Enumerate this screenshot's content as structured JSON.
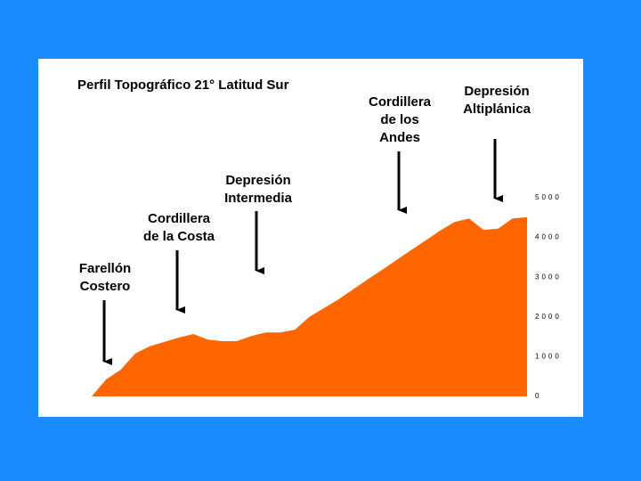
{
  "chart_data": {
    "type": "area",
    "title": "Perfil Topográfico 21° Latitud Sur",
    "values": [
      0,
      430,
      670,
      1080,
      1260,
      1370,
      1480,
      1570,
      1430,
      1390,
      1390,
      1520,
      1610,
      1610,
      1680,
      2000,
      2220,
      2440,
      2690,
      2940,
      3180,
      3430,
      3680,
      3920,
      4170,
      4390,
      4480,
      4190,
      4220,
      4480,
      4510
    ],
    "color": "#ff6600",
    "ylim": [
      0,
      5000
    ],
    "yticks": [
      0,
      1000,
      2000,
      3000,
      4000,
      5000
    ],
    "annotations": [
      {
        "lines": [
          "Farellón",
          "Costero"
        ]
      },
      {
        "lines": [
          "Cordillera",
          "de la Costa"
        ]
      },
      {
        "lines": [
          "Depresión",
          "Intermedia"
        ]
      },
      {
        "lines": [
          "Cordillera",
          "de los",
          "Andes"
        ]
      },
      {
        "lines": [
          "Depresión",
          "Altiplánica"
        ]
      }
    ]
  }
}
